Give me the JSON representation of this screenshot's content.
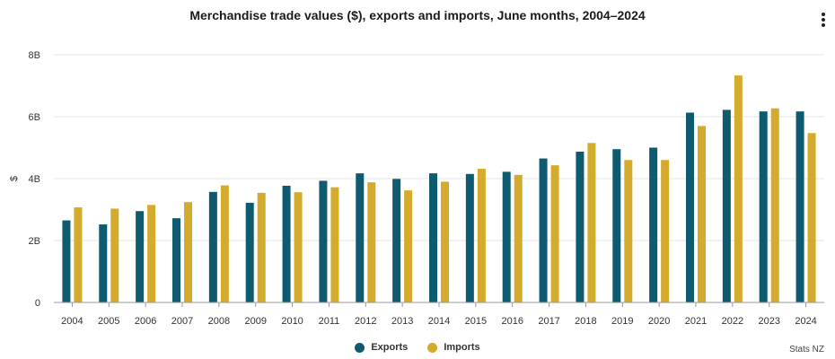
{
  "chart_data": {
    "type": "bar",
    "title": "Merchandise trade values ($), exports and imports, June months, 2004–2024",
    "xlabel": "",
    "ylabel": "$",
    "ylim": [
      0,
      8
    ],
    "yticks": [
      {
        "value": 0,
        "label": "0"
      },
      {
        "value": 2,
        "label": "2B"
      },
      {
        "value": 4,
        "label": "4B"
      },
      {
        "value": 6,
        "label": "6B"
      },
      {
        "value": 8,
        "label": "8B"
      }
    ],
    "categories": [
      "2004",
      "2005",
      "2006",
      "2007",
      "2008",
      "2009",
      "2010",
      "2011",
      "2012",
      "2013",
      "2014",
      "2015",
      "2016",
      "2017",
      "2018",
      "2019",
      "2020",
      "2021",
      "2022",
      "2023",
      "2024"
    ],
    "series": [
      {
        "name": "Exports",
        "color": "#0e5a6e",
        "values": [
          2.65,
          2.52,
          2.95,
          2.72,
          3.57,
          3.22,
          3.77,
          3.93,
          4.17,
          3.99,
          4.17,
          4.15,
          4.22,
          4.65,
          4.87,
          4.95,
          5.0,
          6.13,
          6.22,
          6.17,
          6.17
        ]
      },
      {
        "name": "Imports",
        "color": "#d4ab2c",
        "values": [
          3.07,
          3.03,
          3.15,
          3.24,
          3.78,
          3.54,
          3.56,
          3.72,
          3.88,
          3.62,
          3.9,
          4.32,
          4.12,
          4.43,
          5.15,
          4.6,
          4.6,
          5.7,
          7.33,
          6.27,
          5.47
        ]
      }
    ],
    "legend": "bottom-center",
    "grid": true,
    "source": "Stats NZ"
  },
  "menu_icon": "more-vertical-icon"
}
